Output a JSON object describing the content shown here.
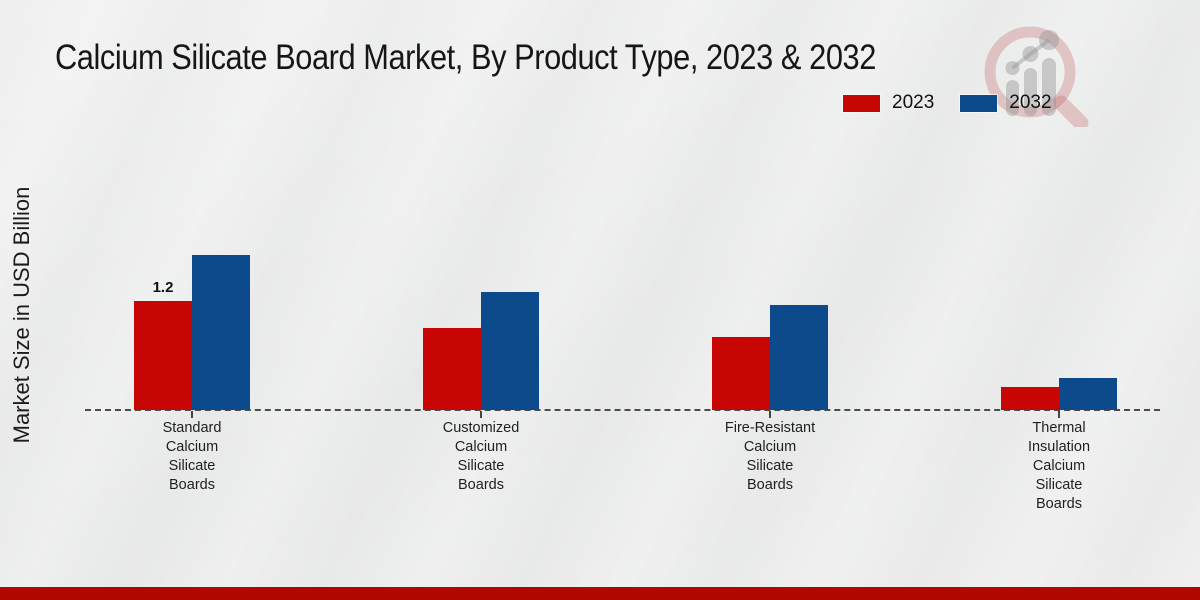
{
  "page": {
    "background_color": "#e9e9e9",
    "footer_bar_color": "#b20600"
  },
  "header": {
    "title": "Calcium Silicate Board Market, By Product Type, 2023 & 2032"
  },
  "logo": {
    "name": "market-research-magnifier-logo",
    "ring_color": "rgba(190,85,85,0.28)",
    "bars_color": "rgba(150,150,150,0.45)"
  },
  "chart_data": {
    "type": "bar",
    "title": "Calcium Silicate Board Market, By Product Type, 2023 & 2032",
    "xlabel": "",
    "ylabel": "Market Size in USD Billion",
    "ylim": [
      0,
      1.8
    ],
    "grid": false,
    "legend_position": "top-right",
    "axis_line_style": "dashed",
    "categories": [
      "Standard Calcium Silicate Boards",
      "Customized Calcium Silicate Boards",
      "Fire-Resistant Calcium Silicate Boards",
      "Thermal Insulation Calcium Silicate Boards"
    ],
    "category_label_lines": [
      [
        "Standard",
        "Calcium",
        "Silicate",
        "Boards"
      ],
      [
        "Customized",
        "Calcium",
        "Silicate",
        "Boards"
      ],
      [
        "Fire-Resistant",
        "Calcium",
        "Silicate",
        "Boards"
      ],
      [
        "Thermal",
        "Insulation",
        "Calcium",
        "Silicate",
        "Boards"
      ]
    ],
    "series": [
      {
        "name": "2023",
        "color": "#c80603",
        "values": [
          1.2,
          0.9,
          0.8,
          0.25
        ]
      },
      {
        "name": "2032",
        "color": "#0c4a8b",
        "values": [
          1.7,
          1.3,
          1.15,
          0.35
        ]
      }
    ],
    "annotations": [
      {
        "series": "2023",
        "category_index": 0,
        "text": "1.2"
      }
    ]
  }
}
